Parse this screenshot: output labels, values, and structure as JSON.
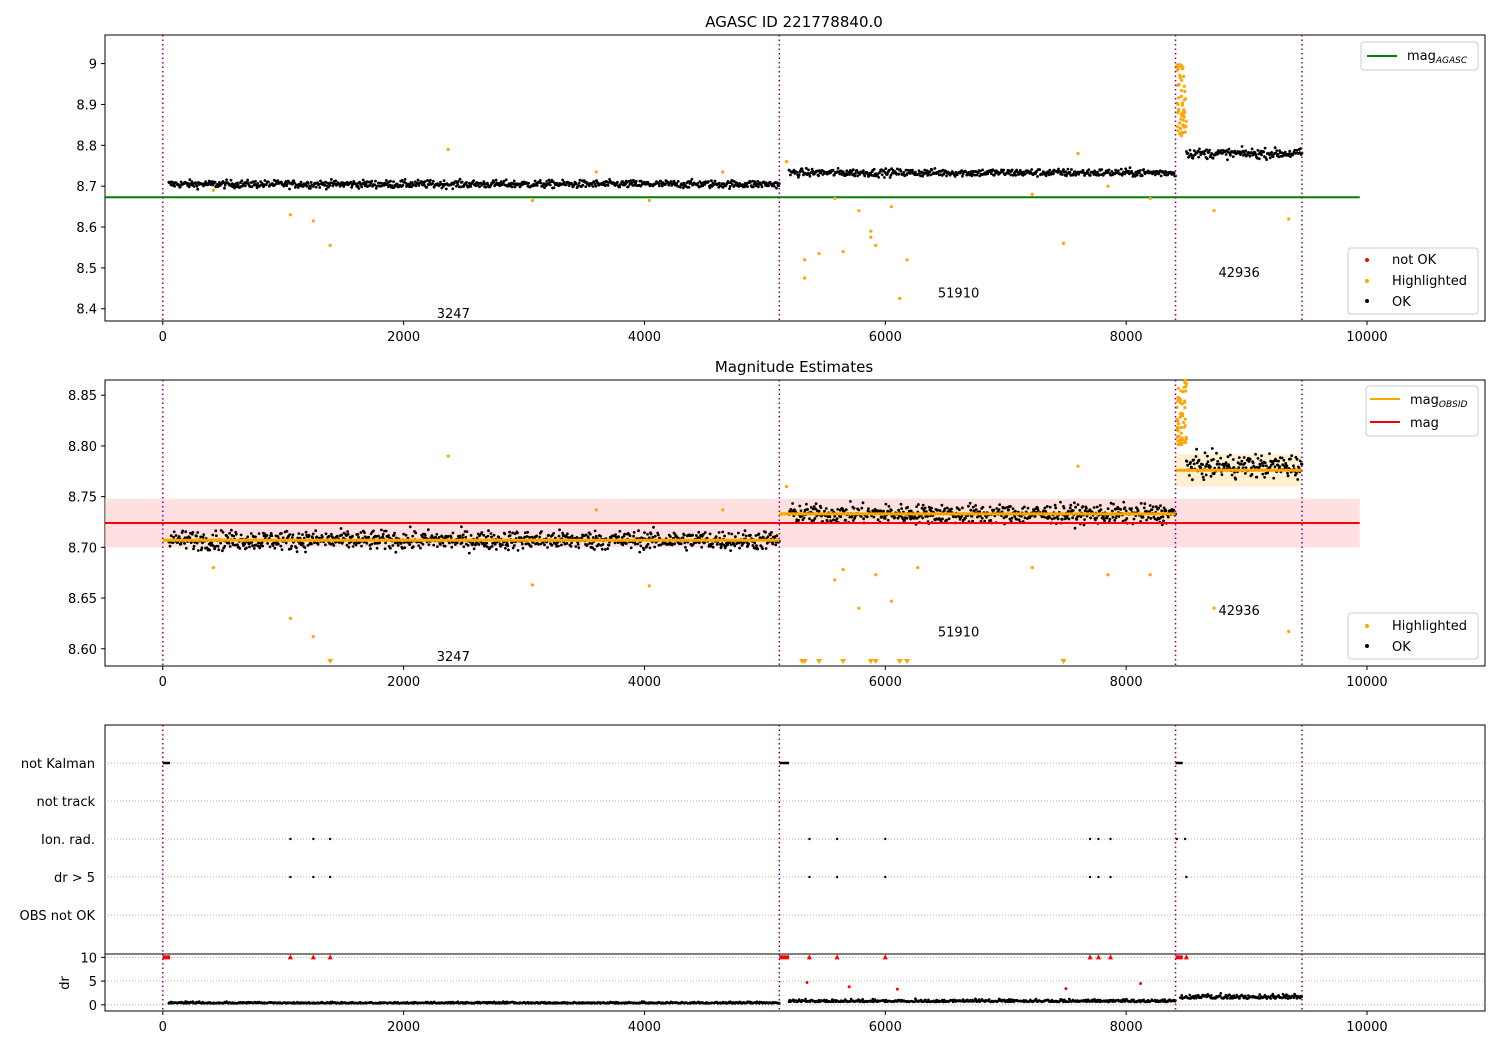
{
  "figure": {
    "background": "#ffffff"
  },
  "chart_data": [
    {
      "id": "agasc",
      "type": "scatter",
      "title": "AGASC ID 221778840.0",
      "xlabel": "",
      "ylabel": "",
      "xlim": [
        -480,
        10980
      ],
      "ylim": [
        8.37,
        9.07
      ],
      "xticks": [
        0,
        2000,
        4000,
        6000,
        8000,
        10000
      ],
      "yticks": [
        8.4,
        8.5,
        8.6,
        8.7,
        8.8,
        8.9,
        9.0
      ],
      "grid": false,
      "legend_top": {
        "placement": "top-right",
        "entries": [
          {
            "label": "mag",
            "subscript": "AGASC",
            "kind": "line",
            "color": "#008000"
          }
        ]
      },
      "legend_bottom": {
        "placement": "bottom-right",
        "entries": [
          {
            "label": "not OK",
            "kind": "dot",
            "color": "#ff0000"
          },
          {
            "label": "Highlighted",
            "kind": "dot",
            "color": "#ffa500"
          },
          {
            "label": "OK",
            "kind": "dot",
            "color": "#000000"
          }
        ]
      },
      "obsid_boundaries": [
        0,
        5120,
        8410,
        9460
      ],
      "obsid_labels": [
        {
          "text": "3247",
          "x": 2550,
          "y": 8.39
        },
        {
          "text": "51910",
          "x": 6780,
          "y": 8.44
        },
        {
          "text": "42936",
          "x": 9110,
          "y": 8.49
        }
      ],
      "hlines": [
        {
          "y": 8.673,
          "x": [
            -480,
            9940
          ],
          "color": "#008000"
        }
      ],
      "ok_segments": [
        {
          "x": [
            50,
            5120
          ],
          "y": 8.705,
          "spread": 0.012
        },
        {
          "x": [
            5200,
            8410
          ],
          "y": 8.733,
          "spread": 0.012
        },
        {
          "x": [
            8500,
            9460
          ],
          "y": 8.78,
          "spread": 0.015
        }
      ],
      "highlighted_points": [
        [
          1060,
          8.63
        ],
        [
          1250,
          8.615
        ],
        [
          1390,
          8.555
        ],
        [
          2370,
          8.79
        ],
        [
          3070,
          8.665
        ],
        [
          4040,
          8.665
        ],
        [
          5180,
          8.76
        ],
        [
          5330,
          8.52
        ],
        [
          5330,
          8.475
        ],
        [
          5450,
          8.535
        ],
        [
          5580,
          8.67
        ],
        [
          5650,
          8.54
        ],
        [
          5780,
          8.64
        ],
        [
          5880,
          8.59
        ],
        [
          5880,
          8.575
        ],
        [
          5920,
          8.555
        ],
        [
          6050,
          8.65
        ],
        [
          6120,
          8.425
        ],
        [
          6180,
          8.52
        ],
        [
          7220,
          8.68
        ],
        [
          7480,
          8.56
        ],
        [
          7600,
          8.78
        ],
        [
          8730,
          8.64
        ],
        [
          9350,
          8.62
        ],
        [
          420,
          8.69
        ],
        [
          3600,
          8.735
        ],
        [
          4650,
          8.735
        ],
        [
          7850,
          8.7
        ],
        [
          8200,
          8.67
        ]
      ],
      "highlighted_spike": [
        8420,
        8500,
        8.82,
        9.0
      ],
      "not_ok_points": []
    },
    {
      "id": "estimates",
      "type": "scatter",
      "title": "Magnitude Estimates",
      "xlabel": "",
      "ylabel": "",
      "xlim": [
        -480,
        10980
      ],
      "ylim": [
        8.583,
        8.865
      ],
      "xticks": [
        0,
        2000,
        4000,
        6000,
        8000,
        10000
      ],
      "yticks": [
        8.6,
        8.65,
        8.7,
        8.75,
        8.8,
        8.85
      ],
      "ytick_labels": [
        "8.60",
        "8.65",
        "8.70",
        "8.75",
        "8.80",
        "8.85"
      ],
      "grid": false,
      "legend_top": {
        "placement": "top-right",
        "entries": [
          {
            "label": "mag",
            "subscript": "OBSID",
            "kind": "line",
            "color": "#ffa500"
          },
          {
            "label": "mag",
            "kind": "line",
            "color": "#ff0000"
          }
        ]
      },
      "legend_bottom": {
        "placement": "bottom-right",
        "entries": [
          {
            "label": "Highlighted",
            "kind": "dot",
            "color": "#ffa500"
          },
          {
            "label": "OK",
            "kind": "dot",
            "color": "#000000"
          }
        ]
      },
      "obsid_boundaries": [
        0,
        5120,
        8410,
        9460
      ],
      "obsid_labels": [
        {
          "text": "3247",
          "x": 2550,
          "y": 8.593
        },
        {
          "text": "51910",
          "x": 6780,
          "y": 8.617
        },
        {
          "text": "42936",
          "x": 9110,
          "y": 8.638
        }
      ],
      "mag_band": {
        "y": [
          8.7,
          8.748
        ],
        "x": [
          -480,
          9940
        ],
        "color": "#ffcccc"
      },
      "mag_line": {
        "y": 8.724,
        "x": [
          -480,
          9940
        ],
        "color": "#ff0000"
      },
      "obsid_mag": [
        {
          "x": [
            0,
            5120
          ],
          "y": 8.707,
          "band": [
            8.703,
            8.711
          ]
        },
        {
          "x": [
            5120,
            8410
          ],
          "y": 8.733,
          "band": [
            8.728,
            8.738
          ]
        },
        {
          "x": [
            8410,
            9460
          ],
          "y": 8.776,
          "band": [
            8.76,
            8.792
          ]
        }
      ],
      "ok_segments": [
        {
          "x": [
            50,
            5120
          ],
          "y": 8.707,
          "spread": 0.012
        },
        {
          "x": [
            5200,
            8410
          ],
          "y": 8.733,
          "spread": 0.012
        },
        {
          "x": [
            8500,
            9460
          ],
          "y": 8.78,
          "spread": 0.015
        }
      ],
      "highlighted_points": [
        [
          1060,
          8.63
        ],
        [
          1250,
          8.612
        ],
        [
          2370,
          8.79
        ],
        [
          3070,
          8.663
        ],
        [
          4040,
          8.662
        ],
        [
          5180,
          8.76
        ],
        [
          5580,
          8.668
        ],
        [
          5650,
          8.678
        ],
        [
          5780,
          8.64
        ],
        [
          5920,
          8.673
        ],
        [
          6050,
          8.647
        ],
        [
          6270,
          8.68
        ],
        [
          7220,
          8.68
        ],
        [
          7600,
          8.78
        ],
        [
          7850,
          8.673
        ],
        [
          8200,
          8.673
        ],
        [
          8730,
          8.64
        ],
        [
          9350,
          8.617
        ],
        [
          420,
          8.68
        ],
        [
          3600,
          8.737
        ],
        [
          4650,
          8.737
        ]
      ],
      "clipped_points": [
        1390,
        5310,
        5330,
        5450,
        5650,
        5880,
        5920,
        6120,
        6180,
        7480
      ],
      "highlighted_spike": [
        8420,
        8500,
        8.8,
        8.865
      ]
    },
    {
      "id": "flags",
      "type": "scatter",
      "title": "",
      "xlim": [
        -480,
        10980
      ],
      "xticks": [
        0,
        2000,
        4000,
        6000,
        8000,
        10000
      ],
      "flag_rows": [
        "not Kalman",
        "not track",
        "Ion. rad.",
        "dr > 5",
        "OBS not OK"
      ],
      "flag_points": {
        "not Kalman": [
          [
            0,
            60
          ],
          [
            5120,
            5200
          ],
          [
            8410,
            8470
          ]
        ],
        "not track": [],
        "Ion. rad.": [
          1060,
          1250,
          1390,
          5370,
          5600,
          6000,
          7700,
          7770,
          7870,
          8420,
          8490
        ],
        "dr > 5": [
          1060,
          1250,
          1390,
          5370,
          5600,
          6000,
          7700,
          7770,
          7870,
          8500
        ],
        "OBS not OK": []
      },
      "obsid_boundaries": [
        0,
        5120,
        8410,
        9460
      ]
    },
    {
      "id": "dr",
      "type": "scatter",
      "title": "",
      "ylabel": "dr",
      "xlim": [
        -480,
        10980
      ],
      "ylim": [
        -1.3,
        10.7
      ],
      "xticks": [
        0,
        2000,
        4000,
        6000,
        8000,
        10000
      ],
      "yticks": [
        0,
        5,
        10
      ],
      "grid": true,
      "clipped_points": [
        [
          0,
          60
        ],
        [
          5120,
          5200
        ],
        [
          8410,
          8470
        ],
        1060,
        1250,
        1390,
        5370,
        5600,
        6000,
        7700,
        7770,
        7870,
        8500
      ],
      "red_points": [
        [
          5350,
          4.7
        ],
        [
          5700,
          3.8
        ],
        [
          6100,
          3.3
        ],
        [
          7500,
          3.4
        ],
        [
          8120,
          4.5
        ]
      ],
      "ok_segments": [
        {
          "x": [
            50,
            5120
          ],
          "y": 0.3,
          "spread": 0.35
        },
        {
          "x": [
            5200,
            8410
          ],
          "y": 0.6,
          "spread": 0.6
        },
        {
          "x": [
            8450,
            9460
          ],
          "y": 1.3,
          "spread": 1.0
        }
      ],
      "obsid_boundaries": [
        0,
        5120,
        8410,
        9460
      ]
    }
  ],
  "colors": {
    "ok": "#000000",
    "highlighted": "#ffa500",
    "not_ok": "#ff0000",
    "agasc_line": "#008000",
    "mag_line": "#ff0000",
    "obsid_line": "#ffa500",
    "obsid_boundary": "#800080",
    "grid": "#b0b0b0"
  }
}
